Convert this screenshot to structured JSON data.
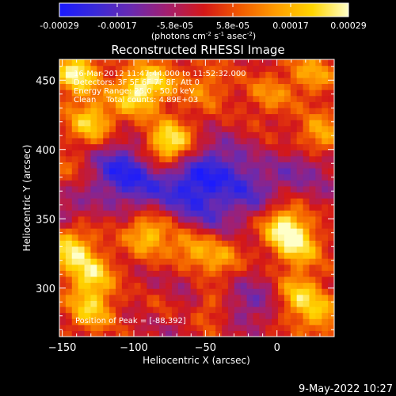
{
  "colorbar": {
    "gradient": [
      "#1a1aff",
      "#3a2ad8",
      "#6a2ab0",
      "#a41f6e",
      "#d41818",
      "#f25a00",
      "#ff9d00",
      "#ffd500",
      "#ffffc8"
    ],
    "tick_labels": [
      "-0.00029",
      "-0.00017",
      "-5.8e-05",
      "5.8e-05",
      "0.00017",
      "0.00029"
    ],
    "unit_html": "(photons cm<tspan baseline-shift=\"super\" font-size=\"7\">-2</tspan> s<tspan baseline-shift=\"super\" font-size=\"7\">-1</tspan> asec<tspan baseline-shift=\"super\" font-size=\"7\">-2</tspan>)"
  },
  "chart_data": {
    "type": "heatmap",
    "title": "Reconstructed RHESSI Image",
    "xlabel": "Heliocentric X (arcsec)",
    "ylabel": "Heliocentric Y (arcsec)",
    "xlim": [
      -152,
      40
    ],
    "ylim": [
      265,
      465
    ],
    "x_ticks": [
      -150,
      -100,
      -50,
      0
    ],
    "y_ticks": [
      300,
      350,
      400,
      450
    ],
    "clim": [
      -0.00029,
      0.00029
    ],
    "grid_cells": [
      44,
      46
    ],
    "hot_spots": [
      {
        "x": -75,
        "y": 405,
        "amp": 0.00029
      },
      {
        "x": -140,
        "y": 455,
        "amp": 0.00027
      },
      {
        "x": -100,
        "y": 440,
        "amp": 0.00022
      },
      {
        "x": -130,
        "y": 420,
        "amp": 0.00022
      },
      {
        "x": -85,
        "y": 450,
        "amp": 0.00018
      },
      {
        "x": -50,
        "y": 445,
        "amp": 0.00012
      },
      {
        "x": -5,
        "y": 440,
        "amp": 0.00012
      },
      {
        "x": 30,
        "y": 410,
        "amp": 0.00018
      },
      {
        "x": 25,
        "y": 455,
        "amp": 0.00015
      },
      {
        "x": -145,
        "y": 330,
        "amp": 0.00025
      },
      {
        "x": -130,
        "y": 310,
        "amp": 0.00022
      },
      {
        "x": -130,
        "y": 285,
        "amp": 0.0002
      },
      {
        "x": -90,
        "y": 340,
        "amp": 0.00022
      },
      {
        "x": -60,
        "y": 330,
        "amp": 0.00018
      },
      {
        "x": -40,
        "y": 320,
        "amp": 0.00016
      },
      {
        "x": -75,
        "y": 290,
        "amp": 0.00024
      },
      {
        "x": -50,
        "y": 285,
        "amp": 0.00016
      },
      {
        "x": 5,
        "y": 345,
        "amp": 0.00026
      },
      {
        "x": 15,
        "y": 330,
        "amp": 0.0002
      },
      {
        "x": 20,
        "y": 375,
        "amp": 0.00014
      },
      {
        "x": 15,
        "y": 295,
        "amp": 0.0002
      },
      {
        "x": 30,
        "y": 280,
        "amp": 0.00015
      },
      {
        "x": -20,
        "y": 300,
        "amp": 0.0001
      },
      {
        "x": -150,
        "y": 380,
        "amp": 0.0001
      }
    ],
    "cold_spots": [
      {
        "x": -70,
        "y": 290,
        "amp": 0.00025
      },
      {
        "x": -20,
        "y": 295,
        "amp": 0.0002
      },
      {
        "x": -110,
        "y": 385,
        "amp": 0.00022
      },
      {
        "x": -60,
        "y": 375,
        "amp": 0.0002
      },
      {
        "x": -40,
        "y": 390,
        "amp": 0.00014
      },
      {
        "x": 20,
        "y": 380,
        "amp": 0.00022
      },
      {
        "x": -20,
        "y": 370,
        "amp": 0.00015
      },
      {
        "x": -50,
        "y": 350,
        "amp": 0.00012
      },
      {
        "x": -90,
        "y": 370,
        "amp": 0.00012
      },
      {
        "x": -150,
        "y": 360,
        "amp": 0.00012
      }
    ]
  },
  "info": {
    "time_range": "16-Mar-2012 11:47:44.000 to 11:52:32.000",
    "detectors": "Detectors: 3F 5F 6F 7F 8F, Att 0",
    "energy": "Energy Range: 25.0 - 50.0 keV",
    "clean": "Clean    Total counts: 4.89E+03",
    "peak": "Position of Peak = [-88,392]"
  },
  "timestamp": "9-May-2022 10:27"
}
